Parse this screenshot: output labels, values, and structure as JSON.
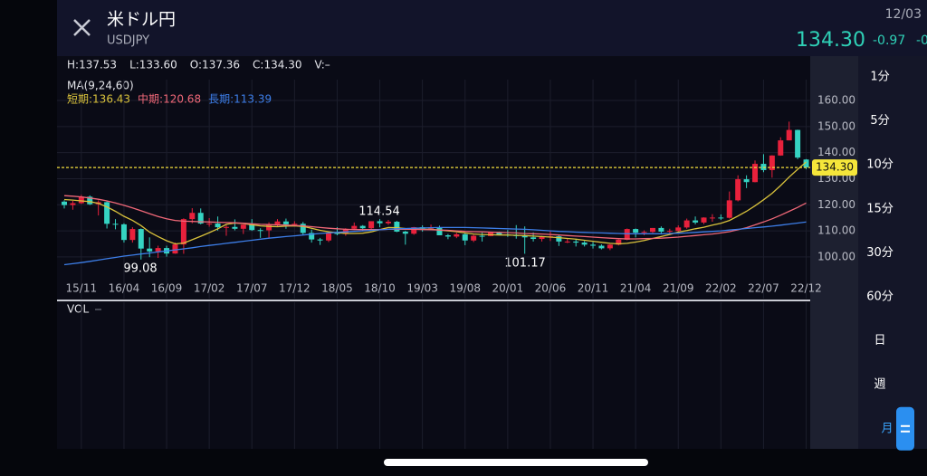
{
  "header": {
    "title": "米ドル円",
    "symbol": "USDJPY",
    "date": "12/03",
    "price": "134.30",
    "change": "-0.97",
    "change_pct": "-0"
  },
  "stats": [
    "H:137.53",
    "L:133.60",
    "O:137.36",
    "C:134.30",
    "V:–"
  ],
  "timeframes": [
    "1分",
    "5分",
    "10分",
    "15分",
    "30分",
    "60分",
    "日",
    "週",
    "月"
  ],
  "selected_timeframe": 8,
  "chart_data": {
    "type": "candlestick",
    "ma_label": "MA(9,24,60)",
    "vol_label": "VOL",
    "up_color": "#e8213c",
    "down_color": "#35d3c2",
    "ylim": [
      84,
      168
    ],
    "yticks": [
      {
        "value": 100,
        "label": "100.00"
      },
      {
        "value": 110,
        "label": "110.00"
      },
      {
        "value": 120,
        "label": "120.00"
      },
      {
        "value": 130,
        "label": "130.00"
      },
      {
        "value": 140,
        "label": "140.00"
      },
      {
        "value": 150,
        "label": "150.00"
      },
      {
        "value": 160,
        "label": "160.00"
      }
    ],
    "grid": true,
    "last_price": {
      "value": 134.3,
      "label": "134.30"
    },
    "annotations": [
      "99.08",
      "114.54",
      "101.17"
    ],
    "categories": [
      null,
      null,
      "15/11",
      null,
      null,
      null,
      null,
      "16/04",
      null,
      null,
      null,
      null,
      "16/09",
      null,
      null,
      null,
      null,
      "17/02",
      null,
      null,
      null,
      null,
      "17/07",
      null,
      null,
      null,
      null,
      "17/12",
      null,
      null,
      null,
      null,
      "18/05",
      null,
      null,
      null,
      null,
      "18/10",
      null,
      null,
      null,
      null,
      "19/03",
      null,
      null,
      null,
      null,
      "19/08",
      null,
      null,
      null,
      null,
      "20/01",
      null,
      null,
      null,
      null,
      "20/06",
      null,
      null,
      null,
      null,
      "20/11",
      null,
      null,
      null,
      null,
      "21/04",
      null,
      null,
      null,
      null,
      "21/09",
      null,
      null,
      null,
      null,
      "22/02",
      null,
      null,
      null,
      null,
      "22/07",
      null,
      null,
      null,
      null,
      "22/12"
    ],
    "ohlc": [
      [
        121.2,
        121.7,
        118.6,
        119.9
      ],
      [
        119.9,
        121.5,
        118.1,
        120.6
      ],
      [
        120.6,
        123.8,
        120.3,
        123.1
      ],
      [
        123.1,
        123.6,
        119.9,
        120.2
      ],
      [
        120.2,
        121.7,
        115.9,
        121.0
      ],
      [
        121.0,
        121.5,
        110.9,
        112.7
      ],
      [
        112.7,
        114.5,
        110.6,
        112.5
      ],
      [
        112.5,
        112.9,
        105.5,
        106.5
      ],
      [
        106.5,
        111.4,
        105.5,
        110.7
      ],
      [
        110.7,
        110.9,
        99.0,
        103.2
      ],
      [
        103.2,
        107.5,
        99.9,
        102.1
      ],
      [
        102.1,
        104.3,
        99.6,
        103.4
      ],
      [
        103.4,
        104.3,
        100.1,
        101.3
      ],
      [
        101.3,
        105.5,
        101.2,
        104.8
      ],
      [
        104.8,
        114.8,
        101.2,
        114.5
      ],
      [
        114.5,
        118.7,
        112.9,
        116.9
      ],
      [
        116.9,
        118.6,
        112.5,
        112.8
      ],
      [
        112.8,
        114.9,
        111.6,
        112.8
      ],
      [
        112.8,
        115.5,
        110.1,
        111.4
      ],
      [
        111.4,
        112.2,
        108.1,
        111.5
      ],
      [
        111.5,
        114.4,
        110.2,
        110.8
      ],
      [
        110.8,
        112.5,
        108.8,
        112.4
      ],
      [
        112.4,
        114.5,
        110.0,
        110.3
      ],
      [
        110.3,
        111.0,
        107.3,
        110.2
      ],
      [
        110.2,
        113.3,
        107.3,
        112.5
      ],
      [
        112.5,
        114.5,
        111.6,
        113.6
      ],
      [
        113.6,
        114.7,
        110.8,
        112.5
      ],
      [
        112.5,
        113.7,
        111.9,
        112.7
      ],
      [
        112.7,
        113.4,
        108.3,
        109.2
      ],
      [
        109.2,
        110.5,
        105.5,
        106.7
      ],
      [
        106.7,
        107.3,
        104.6,
        106.3
      ],
      [
        106.3,
        109.8,
        105.7,
        109.3
      ],
      [
        109.3,
        111.4,
        108.3,
        108.8
      ],
      [
        108.8,
        111.0,
        108.1,
        110.8
      ],
      [
        110.8,
        113.2,
        110.3,
        111.9
      ],
      [
        111.9,
        112.2,
        109.8,
        111.0
      ],
      [
        111.0,
        113.7,
        110.4,
        113.7
      ],
      [
        113.7,
        114.5,
        111.4,
        112.9
      ],
      [
        112.9,
        114.2,
        112.3,
        113.5
      ],
      [
        113.5,
        113.8,
        109.5,
        109.7
      ],
      [
        109.7,
        110.0,
        104.7,
        108.9
      ],
      [
        108.9,
        111.5,
        108.5,
        111.4
      ],
      [
        111.4,
        112.1,
        109.7,
        110.8
      ],
      [
        110.8,
        112.4,
        110.8,
        111.4
      ],
      [
        111.4,
        112.0,
        108.3,
        108.3
      ],
      [
        108.3,
        108.8,
        106.8,
        107.8
      ],
      [
        107.8,
        109.3,
        107.2,
        108.7
      ],
      [
        108.7,
        109.3,
        104.5,
        106.3
      ],
      [
        106.3,
        108.5,
        105.7,
        108.1
      ],
      [
        108.1,
        109.3,
        105.9,
        108.0
      ],
      [
        108.0,
        109.7,
        107.9,
        109.5
      ],
      [
        109.5,
        109.7,
        108.4,
        108.6
      ],
      [
        108.6,
        110.3,
        107.7,
        108.4
      ],
      [
        108.4,
        112.2,
        107.0,
        108.0
      ],
      [
        108.0,
        111.7,
        101.2,
        107.5
      ],
      [
        107.5,
        109.4,
        105.9,
        106.9
      ],
      [
        106.9,
        108.1,
        105.9,
        107.8
      ],
      [
        107.8,
        109.9,
        106.1,
        107.9
      ],
      [
        107.9,
        108.2,
        104.2,
        105.9
      ],
      [
        105.9,
        107.0,
        105.3,
        105.9
      ],
      [
        105.9,
        106.6,
        104.0,
        105.5
      ],
      [
        105.5,
        106.1,
        104.0,
        104.7
      ],
      [
        104.7,
        105.7,
        103.2,
        104.3
      ],
      [
        104.3,
        104.8,
        102.9,
        103.3
      ],
      [
        103.3,
        104.9,
        102.6,
        104.7
      ],
      [
        104.7,
        106.7,
        104.4,
        106.6
      ],
      [
        106.6,
        110.9,
        106.4,
        110.7
      ],
      [
        110.7,
        110.9,
        107.5,
        109.3
      ],
      [
        109.3,
        110.2,
        108.3,
        109.6
      ],
      [
        109.6,
        111.1,
        109.2,
        111.1
      ],
      [
        111.1,
        111.7,
        109.1,
        109.7
      ],
      [
        109.7,
        110.8,
        108.7,
        110.0
      ],
      [
        110.0,
        112.1,
        109.1,
        111.3
      ],
      [
        111.3,
        114.7,
        110.8,
        114.0
      ],
      [
        114.0,
        115.5,
        112.5,
        113.2
      ],
      [
        113.2,
        115.2,
        112.6,
        115.1
      ],
      [
        115.1,
        116.4,
        113.5,
        115.1
      ],
      [
        115.1,
        116.3,
        114.2,
        115.0
      ],
      [
        115.0,
        125.1,
        114.7,
        121.7
      ],
      [
        121.7,
        131.3,
        121.3,
        129.8
      ],
      [
        129.8,
        131.3,
        126.4,
        128.7
      ],
      [
        128.7,
        137.0,
        128.6,
        135.7
      ],
      [
        135.7,
        139.4,
        132.5,
        133.3
      ],
      [
        133.3,
        139.0,
        130.4,
        138.9
      ],
      [
        138.9,
        145.9,
        138.8,
        144.7
      ],
      [
        144.7,
        151.9,
        144.7,
        148.7
      ],
      [
        148.7,
        148.8,
        137.5,
        138.1
      ],
      [
        137.36,
        137.53,
        133.6,
        134.3
      ]
    ],
    "series": [
      {
        "name": "短期:136.43",
        "color": "#d9c23c",
        "values": [
          122.0,
          121.8,
          121.5,
          121.2,
          120.5,
          119.2,
          117.5,
          115.6,
          114.0,
          112.0,
          109.5,
          107.8,
          106.2,
          105.0,
          105.3,
          106.6,
          107.9,
          109.3,
          110.8,
          112.5,
          113.0,
          112.8,
          112.3,
          111.9,
          111.7,
          111.6,
          111.8,
          111.9,
          111.7,
          111.0,
          110.2,
          109.6,
          109.3,
          109.0,
          109.0,
          109.1,
          109.6,
          110.5,
          111.3,
          111.2,
          110.9,
          110.7,
          110.6,
          110.6,
          110.3,
          110.0,
          109.7,
          109.2,
          108.8,
          108.6,
          108.5,
          108.4,
          108.4,
          108.3,
          108.2,
          108.0,
          107.8,
          107.6,
          107.4,
          107.1,
          106.8,
          106.4,
          106.0,
          105.6,
          105.2,
          105.0,
          105.2,
          105.7,
          106.3,
          107.1,
          107.8,
          108.6,
          109.5,
          110.1,
          110.8,
          111.4,
          112.2,
          112.9,
          114.0,
          115.7,
          117.5,
          119.6,
          121.9,
          124.4,
          127.4,
          130.6,
          133.6,
          136.43
        ]
      },
      {
        "name": "中期:120.68",
        "color": "#f06878",
        "values": [
          123.5,
          123.3,
          123.0,
          122.6,
          122.1,
          121.5,
          120.7,
          119.8,
          118.8,
          117.7,
          116.6,
          115.5,
          114.6,
          114.0,
          113.7,
          113.6,
          113.5,
          113.4,
          113.3,
          113.2,
          113.1,
          112.9,
          112.7,
          112.5,
          112.4,
          112.3,
          112.2,
          112.1,
          111.9,
          111.6,
          111.3,
          111.0,
          110.8,
          110.6,
          110.5,
          110.5,
          110.5,
          110.5,
          110.6,
          110.6,
          110.6,
          110.6,
          110.5,
          110.4,
          110.3,
          110.2,
          110.0,
          109.8,
          109.7,
          109.6,
          109.5,
          109.4,
          109.3,
          109.2,
          109.0,
          108.9,
          108.8,
          108.6,
          108.4,
          108.2,
          108.0,
          107.8,
          107.6,
          107.4,
          107.2,
          107.0,
          106.9,
          106.9,
          107.0,
          107.1,
          107.2,
          107.4,
          107.6,
          107.9,
          108.2,
          108.5,
          108.8,
          109.2,
          109.7,
          110.4,
          111.2,
          112.3,
          113.4,
          114.6,
          116.0,
          117.5,
          119.0,
          120.68
        ]
      },
      {
        "name": "長期:113.39",
        "color": "#3d7ee8",
        "values": [
          97.0,
          97.4,
          97.8,
          98.3,
          98.8,
          99.3,
          99.8,
          100.3,
          100.7,
          101.1,
          101.5,
          101.9,
          102.3,
          102.7,
          103.1,
          103.5,
          104.0,
          104.4,
          104.8,
          105.2,
          105.6,
          106.0,
          106.4,
          106.8,
          107.2,
          107.5,
          107.8,
          108.1,
          108.4,
          108.7,
          109.0,
          109.2,
          109.4,
          109.6,
          109.8,
          110.0,
          110.2,
          110.4,
          110.6,
          110.8,
          110.9,
          111.0,
          111.1,
          111.2,
          111.3,
          111.3,
          111.3,
          111.3,
          111.2,
          111.1,
          111.0,
          110.9,
          110.8,
          110.7,
          110.6,
          110.4,
          110.2,
          110.0,
          109.8,
          109.7,
          109.5,
          109.4,
          109.3,
          109.2,
          109.1,
          109.0,
          108.9,
          108.9,
          108.9,
          108.9,
          108.9,
          109.0,
          109.1,
          109.2,
          109.4,
          109.6,
          109.8,
          110.0,
          110.3,
          110.6,
          110.9,
          111.2,
          111.5,
          111.8,
          112.2,
          112.6,
          113.0,
          113.39
        ]
      }
    ]
  }
}
